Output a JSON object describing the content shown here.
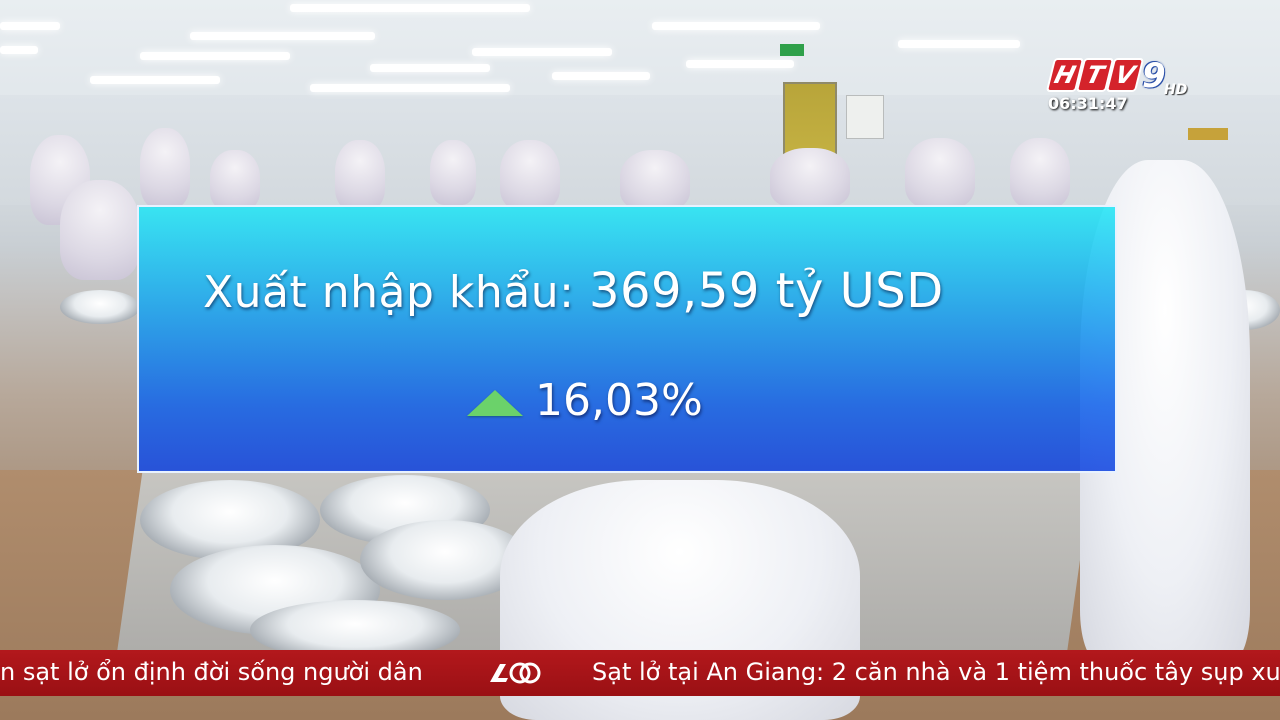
{
  "broadcast": {
    "channel_logo_letters": [
      "H",
      "T",
      "V"
    ],
    "channel_number": "9",
    "quality_badge": "HD",
    "clock": "06:31:47"
  },
  "info_panel": {
    "label": "Xuất nhập khẩu:",
    "value": "369,59 tỷ USD",
    "change": "16,03%",
    "change_direction": "up",
    "change_icon": "up-triangle-icon",
    "colors": {
      "panel_top": "#1ee6f5",
      "panel_bottom": "#194be1",
      "triangle": "#6bd26a"
    }
  },
  "ticker": {
    "left_text": "n sạt lở ổn định đời sống người dân",
    "separator_icon": "ticker-logo-icon",
    "right_text": "Sạt lở tại An Giang: 2 căn nhà và 1 tiệm thuốc tây sụp xu",
    "background_color": "#b3181c"
  }
}
